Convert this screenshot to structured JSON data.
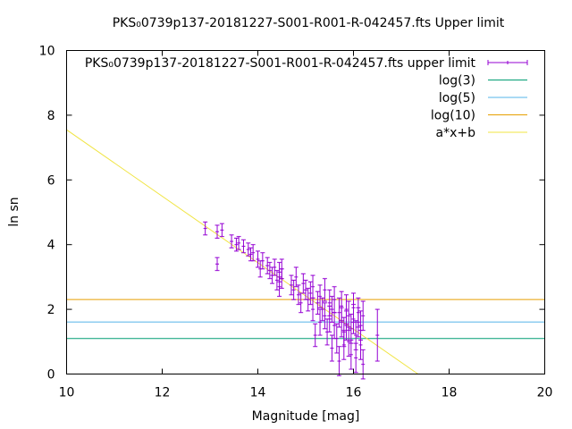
{
  "chart_data": {
    "type": "scatter",
    "title": "PKS₀0739p137-20181227-S001-R001-R-042457.fts Upper limit",
    "xlabel": "Magnitude [mag]",
    "ylabel": "ln sn",
    "xlim": [
      10,
      20
    ],
    "ylim": [
      0,
      10
    ],
    "x_ticks": [
      10,
      12,
      14,
      16,
      18,
      20
    ],
    "y_ticks": [
      0,
      2,
      4,
      6,
      8,
      10
    ],
    "grid": false,
    "legend_position": "top-right",
    "series": [
      {
        "name": "PKS₀0739p137-20181227-S001-R001-R-042457.fts upper limit",
        "kind": "errorbars",
        "color": "#9400d3",
        "points": [
          [
            12.9,
            4.5,
            0.2
          ],
          [
            13.15,
            4.4,
            0.2
          ],
          [
            13.15,
            3.4,
            0.2
          ],
          [
            13.25,
            4.45,
            0.2
          ],
          [
            13.45,
            4.1,
            0.2
          ],
          [
            13.55,
            4.0,
            0.2
          ],
          [
            13.6,
            4.05,
            0.2
          ],
          [
            13.7,
            3.95,
            0.2
          ],
          [
            13.8,
            3.85,
            0.2
          ],
          [
            13.85,
            3.7,
            0.2
          ],
          [
            13.9,
            3.75,
            0.25
          ],
          [
            14.0,
            3.55,
            0.25
          ],
          [
            14.05,
            3.25,
            0.25
          ],
          [
            14.1,
            3.5,
            0.25
          ],
          [
            14.2,
            3.35,
            0.25
          ],
          [
            14.25,
            3.2,
            0.25
          ],
          [
            14.3,
            3.05,
            0.25
          ],
          [
            14.35,
            3.3,
            0.25
          ],
          [
            14.4,
            2.9,
            0.3
          ],
          [
            14.45,
            3.15,
            0.3
          ],
          [
            14.45,
            2.7,
            0.3
          ],
          [
            14.5,
            2.95,
            0.3
          ],
          [
            14.5,
            3.25,
            0.3
          ],
          [
            14.7,
            2.75,
            0.3
          ],
          [
            14.75,
            2.6,
            0.3
          ],
          [
            14.8,
            3.0,
            0.3
          ],
          [
            14.85,
            2.45,
            0.3
          ],
          [
            14.9,
            2.2,
            0.3
          ],
          [
            14.95,
            2.8,
            0.3
          ],
          [
            15.0,
            2.6,
            0.3
          ],
          [
            15.05,
            2.3,
            0.35
          ],
          [
            15.1,
            2.5,
            0.35
          ],
          [
            15.15,
            2.0,
            0.35
          ],
          [
            15.15,
            2.7,
            0.35
          ],
          [
            15.2,
            1.2,
            0.35
          ],
          [
            15.25,
            2.2,
            0.35
          ],
          [
            15.3,
            2.4,
            0.35
          ],
          [
            15.3,
            1.6,
            0.4
          ],
          [
            15.35,
            2.0,
            0.35
          ],
          [
            15.4,
            2.6,
            0.35
          ],
          [
            15.4,
            1.8,
            0.4
          ],
          [
            15.45,
            1.3,
            0.4
          ],
          [
            15.5,
            2.2,
            0.4
          ],
          [
            15.5,
            1.7,
            0.4
          ],
          [
            15.55,
            0.8,
            0.4
          ],
          [
            15.55,
            2.0,
            0.4
          ],
          [
            15.6,
            1.5,
            0.4
          ],
          [
            15.6,
            2.3,
            0.4
          ],
          [
            15.65,
            1.1,
            0.45
          ],
          [
            15.7,
            1.9,
            0.45
          ],
          [
            15.7,
            0.4,
            0.45
          ],
          [
            15.75,
            1.6,
            0.45
          ],
          [
            15.75,
            2.1,
            0.45
          ],
          [
            15.8,
            1.3,
            0.45
          ],
          [
            15.8,
            0.9,
            0.45
          ],
          [
            15.85,
            2.0,
            0.45
          ],
          [
            15.85,
            1.5,
            0.45
          ],
          [
            15.9,
            1.0,
            0.45
          ],
          [
            15.9,
            1.8,
            0.45
          ],
          [
            15.95,
            1.4,
            0.45
          ],
          [
            15.95,
            0.6,
            0.45
          ],
          [
            16.0,
            1.7,
            0.45
          ],
          [
            16.0,
            2.05,
            0.45
          ],
          [
            16.05,
            1.2,
            0.45
          ],
          [
            16.05,
            0.5,
            0.45
          ],
          [
            16.1,
            1.6,
            0.45
          ],
          [
            16.1,
            1.9,
            0.45
          ],
          [
            16.15,
            0.9,
            0.45
          ],
          [
            16.15,
            1.5,
            0.45
          ],
          [
            16.2,
            1.8,
            0.45
          ],
          [
            16.2,
            0.3,
            0.45
          ],
          [
            16.5,
            1.2,
            0.8
          ]
        ]
      },
      {
        "name": "log(3)",
        "kind": "hline",
        "color": "#009e73",
        "y": 1.0986
      },
      {
        "name": "log(5)",
        "kind": "hline",
        "color": "#56b4e9",
        "y": 1.6094
      },
      {
        "name": "log(10)",
        "kind": "hline",
        "color": "#e69f00",
        "y": 2.3026
      },
      {
        "name": "a*x+b",
        "kind": "line",
        "color": "#f0e442",
        "x": [
          10,
          17.35
        ],
        "y": [
          7.55,
          0
        ]
      }
    ]
  }
}
